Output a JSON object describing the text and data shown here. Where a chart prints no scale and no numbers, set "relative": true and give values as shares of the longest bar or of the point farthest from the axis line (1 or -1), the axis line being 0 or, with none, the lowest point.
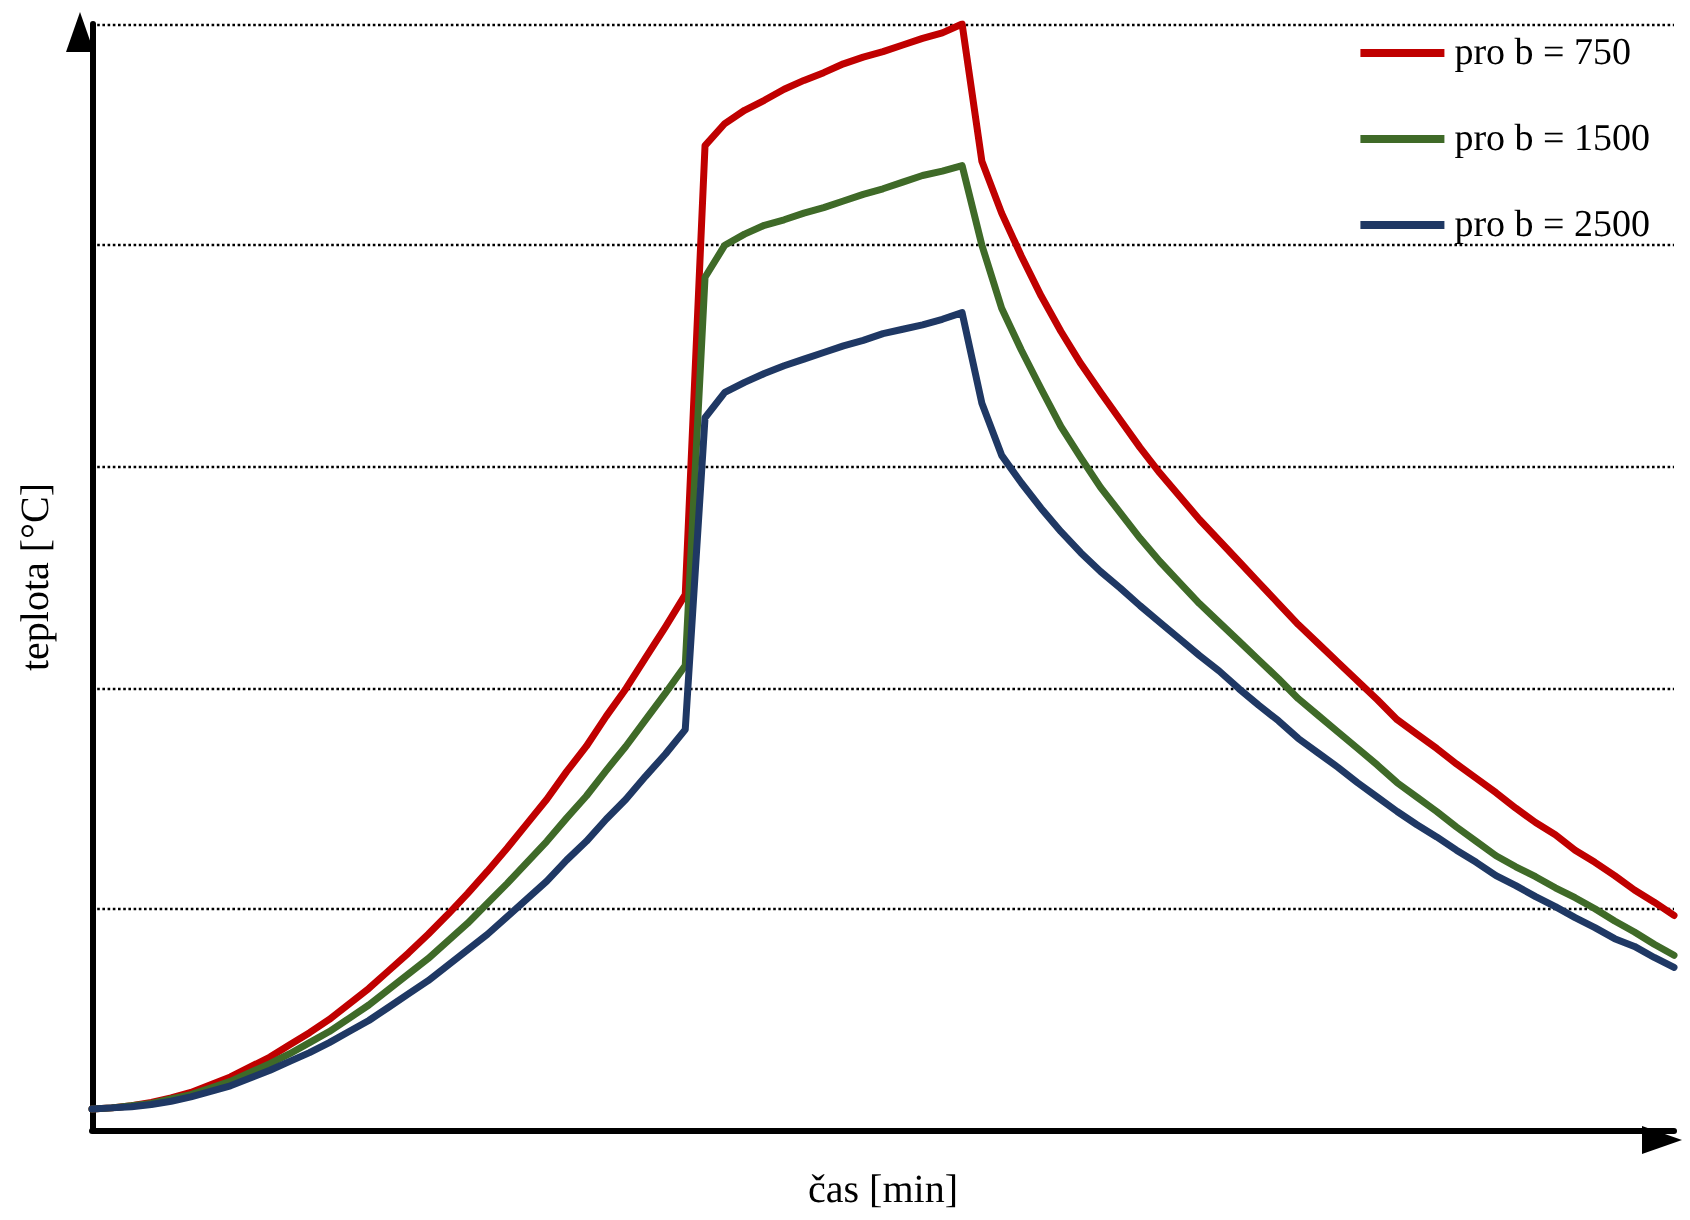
{
  "chart_data": {
    "type": "line",
    "relative": true,
    "xlabel": "čas [min]",
    "ylabel": "teplota [°C]",
    "grid": "y",
    "legend": "top right",
    "marker": "none",
    "line_style": "solid",
    "categories": [
      null,
      null,
      null,
      null,
      null,
      null,
      null,
      null,
      null,
      null,
      null,
      null,
      null,
      null,
      null,
      null,
      null,
      null,
      null,
      null,
      null,
      null,
      null,
      null,
      null,
      null,
      null,
      null,
      null,
      null,
      null,
      null,
      null,
      null,
      null,
      null,
      null,
      null,
      null,
      null,
      null,
      null,
      null,
      null,
      null,
      null,
      null,
      null,
      null,
      null,
      null,
      null,
      null,
      null,
      null,
      null,
      null,
      null,
      null,
      null,
      null,
      null,
      null,
      null,
      null,
      null,
      null,
      null,
      null,
      null,
      null,
      null,
      null,
      null,
      null,
      null,
      null,
      null,
      null,
      null,
      null
    ],
    "series": [
      {
        "name": "pro b = 750",
        "color": "#c00000",
        "values": [
          0.019,
          0.02,
          0.022,
          0.025,
          0.029,
          0.034,
          0.041,
          0.048,
          0.057,
          0.066,
          0.077,
          0.088,
          0.1,
          0.114,
          0.128,
          0.144,
          0.16,
          0.177,
          0.195,
          0.214,
          0.234,
          0.255,
          0.277,
          0.299,
          0.324,
          0.347,
          0.374,
          0.399,
          0.427,
          0.455,
          0.484,
          0.89,
          0.91,
          0.922,
          0.931,
          0.941,
          0.949,
          0.956,
          0.964,
          0.97,
          0.975,
          0.981,
          0.987,
          0.992,
          1.0,
          0.876,
          0.829,
          0.79,
          0.754,
          0.722,
          0.693,
          0.667,
          0.642,
          0.617,
          0.594,
          0.573,
          0.552,
          0.533,
          0.514,
          0.495,
          0.476,
          0.457,
          0.44,
          0.423,
          0.406,
          0.389,
          0.371,
          0.358,
          0.345,
          0.331,
          0.318,
          0.305,
          0.291,
          0.278,
          0.267,
          0.253,
          0.242,
          0.23,
          0.217,
          0.206,
          0.194
        ]
      },
      {
        "name": "pro b = 1500",
        "color": "#3f6a28",
        "values": [
          0.019,
          0.02,
          0.022,
          0.024,
          0.028,
          0.032,
          0.038,
          0.044,
          0.052,
          0.06,
          0.069,
          0.079,
          0.089,
          0.101,
          0.113,
          0.127,
          0.141,
          0.155,
          0.171,
          0.187,
          0.205,
          0.223,
          0.242,
          0.261,
          0.282,
          0.302,
          0.325,
          0.347,
          0.371,
          0.395,
          0.42,
          0.771,
          0.8,
          0.81,
          0.818,
          0.823,
          0.829,
          0.834,
          0.84,
          0.846,
          0.851,
          0.857,
          0.863,
          0.867,
          0.872,
          0.8,
          0.743,
          0.705,
          0.67,
          0.636,
          0.608,
          0.581,
          0.558,
          0.535,
          0.514,
          0.495,
          0.476,
          0.459,
          0.442,
          0.425,
          0.408,
          0.39,
          0.375,
          0.36,
          0.345,
          0.33,
          0.314,
          0.301,
          0.288,
          0.274,
          0.261,
          0.248,
          0.238,
          0.229,
          0.219,
          0.21,
          0.2,
          0.189,
          0.179,
          0.168,
          0.158
        ]
      },
      {
        "name": "pro b = 2500",
        "color": "#1f3864",
        "values": [
          0.019,
          0.02,
          0.021,
          0.023,
          0.026,
          0.03,
          0.035,
          0.04,
          0.047,
          0.054,
          0.062,
          0.07,
          0.079,
          0.089,
          0.099,
          0.111,
          0.123,
          0.135,
          0.149,
          0.163,
          0.177,
          0.193,
          0.209,
          0.225,
          0.244,
          0.261,
          0.281,
          0.299,
          0.32,
          0.34,
          0.362,
          0.644,
          0.667,
          0.676,
          0.684,
          0.691,
          0.697,
          0.703,
          0.709,
          0.714,
          0.72,
          0.724,
          0.728,
          0.733,
          0.739,
          0.657,
          0.61,
          0.585,
          0.562,
          0.541,
          0.522,
          0.505,
          0.49,
          0.474,
          0.459,
          0.444,
          0.429,
          0.415,
          0.399,
          0.384,
          0.37,
          0.354,
          0.341,
          0.328,
          0.314,
          0.301,
          0.288,
          0.276,
          0.265,
          0.253,
          0.242,
          0.23,
          0.221,
          0.211,
          0.202,
          0.192,
          0.183,
          0.173,
          0.166,
          0.156,
          0.147
        ]
      }
    ]
  }
}
